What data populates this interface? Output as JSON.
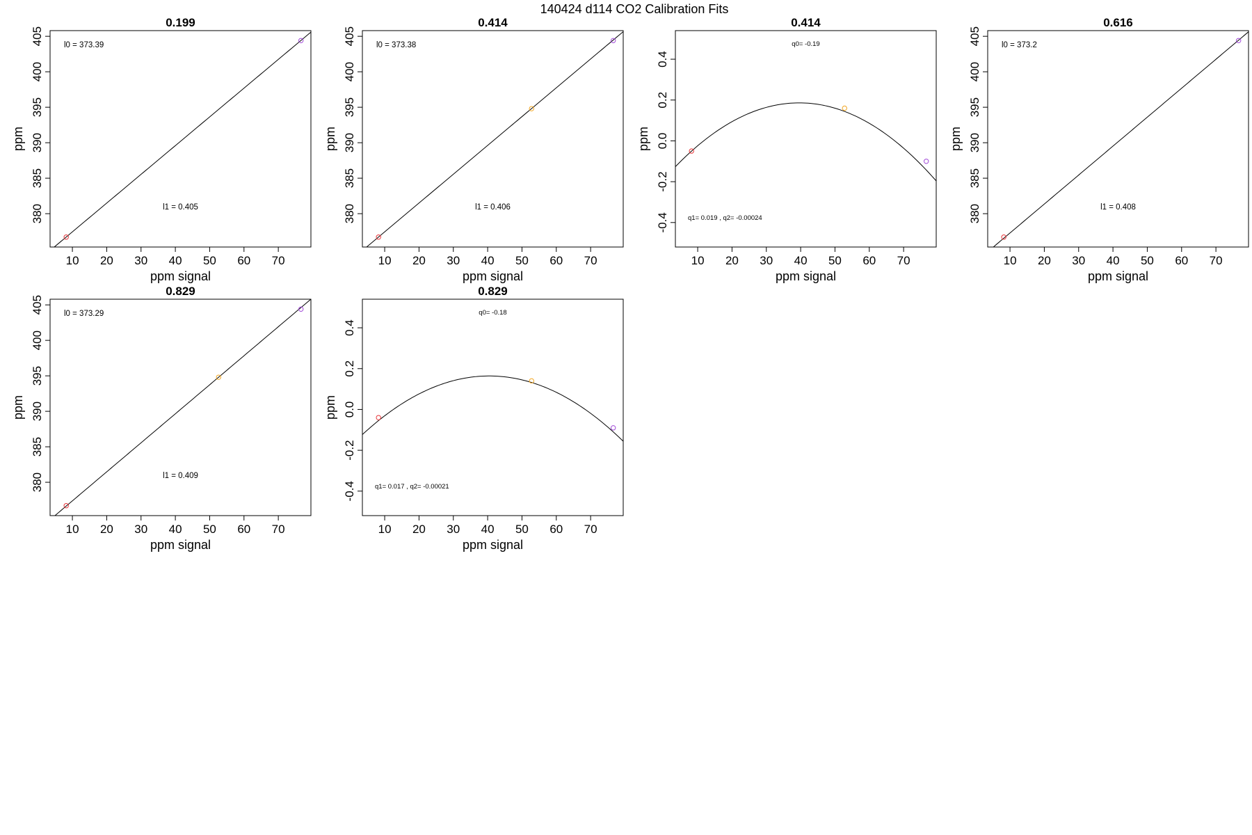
{
  "figure": {
    "title": "140424   d114   CO2 Calibration Fits",
    "colors": {
      "frame": "#000000",
      "curve": "#000000",
      "point_low": "#e8363a",
      "point_mid": "#f2a623",
      "point_high": "#a14ad8"
    }
  },
  "chart_data": [
    {
      "type": "line",
      "title": "0.199",
      "xlabel": "ppm signal",
      "ylabel": "ppm",
      "xlim": [
        3.5,
        79.5
      ],
      "ylim": [
        375.3,
        405.8
      ],
      "xticks": [
        10,
        20,
        30,
        40,
        50,
        60,
        70
      ],
      "yticks": [
        380,
        385,
        390,
        395,
        400,
        405
      ],
      "fit": {
        "kind": "linear",
        "intercept": 373.39,
        "slope": 0.405
      },
      "points": [
        {
          "x": 8.2,
          "y": 376.7,
          "color": "#e8363a"
        },
        {
          "x": 76.6,
          "y": 404.4,
          "color": "#a14ad8"
        }
      ],
      "annotations": [
        {
          "text": "l0 =  373.39",
          "pos": "top-left"
        },
        {
          "text": "l1 =  0.405",
          "pos": "lower-middle"
        }
      ]
    },
    {
      "type": "line",
      "title": "0.414",
      "xlabel": "ppm signal",
      "ylabel": "ppm",
      "xlim": [
        3.5,
        79.5
      ],
      "ylim": [
        375.3,
        405.8
      ],
      "xticks": [
        10,
        20,
        30,
        40,
        50,
        60,
        70
      ],
      "yticks": [
        380,
        385,
        390,
        395,
        400,
        405
      ],
      "fit": {
        "kind": "linear",
        "intercept": 373.38,
        "slope": 0.406
      },
      "points": [
        {
          "x": 8.2,
          "y": 376.7,
          "color": "#e8363a"
        },
        {
          "x": 52.8,
          "y": 394.8,
          "color": "#f2a623"
        },
        {
          "x": 76.6,
          "y": 404.4,
          "color": "#a14ad8"
        }
      ],
      "annotations": [
        {
          "text": "l0 =  373.38",
          "pos": "top-left"
        },
        {
          "text": "l1 =  0.406",
          "pos": "lower-middle"
        }
      ]
    },
    {
      "type": "line",
      "title": "0.414",
      "xlabel": "ppm signal",
      "ylabel": "ppm",
      "xlim": [
        3.5,
        79.5
      ],
      "ylim": [
        -0.52,
        0.54
      ],
      "xticks": [
        10,
        20,
        30,
        40,
        50,
        60,
        70
      ],
      "yticks": [
        -0.4,
        -0.2,
        0.0,
        0.2,
        0.4
      ],
      "fit": {
        "kind": "quadratic",
        "q0": -0.19,
        "q1": 0.019,
        "q2": -0.00024
      },
      "points": [
        {
          "x": 8.2,
          "y": -0.05,
          "color": "#e8363a"
        },
        {
          "x": 52.8,
          "y": 0.16,
          "color": "#f2a623"
        },
        {
          "x": 76.6,
          "y": -0.1,
          "color": "#a14ad8"
        }
      ],
      "annotations": [
        {
          "text": "q0= -0.19",
          "pos": "top-middle"
        },
        {
          "text": "q1= 0.019 , q2= -0.00024",
          "pos": "bottom-left"
        }
      ]
    },
    {
      "type": "line",
      "title": "0.616",
      "xlabel": "ppm signal",
      "ylabel": "ppm",
      "xlim": [
        3.5,
        79.5
      ],
      "ylim": [
        375.3,
        405.8
      ],
      "xticks": [
        10,
        20,
        30,
        40,
        50,
        60,
        70
      ],
      "yticks": [
        380,
        385,
        390,
        395,
        400,
        405
      ],
      "fit": {
        "kind": "linear",
        "intercept": 373.2,
        "slope": 0.408
      },
      "points": [
        {
          "x": 8.2,
          "y": 376.7,
          "color": "#e8363a"
        },
        {
          "x": 76.6,
          "y": 404.4,
          "color": "#a14ad8"
        }
      ],
      "annotations": [
        {
          "text": "l0 =  373.2",
          "pos": "top-left"
        },
        {
          "text": "l1 =  0.408",
          "pos": "lower-middle"
        }
      ]
    },
    {
      "type": "line",
      "title": "0.829",
      "xlabel": "ppm signal",
      "ylabel": "ppm",
      "xlim": [
        3.5,
        79.5
      ],
      "ylim": [
        375.3,
        405.8
      ],
      "xticks": [
        10,
        20,
        30,
        40,
        50,
        60,
        70
      ],
      "yticks": [
        380,
        385,
        390,
        395,
        400,
        405
      ],
      "fit": {
        "kind": "linear",
        "intercept": 373.29,
        "slope": 0.409
      },
      "points": [
        {
          "x": 8.2,
          "y": 376.7,
          "color": "#e8363a"
        },
        {
          "x": 52.6,
          "y": 394.8,
          "color": "#f2a623"
        },
        {
          "x": 76.6,
          "y": 404.4,
          "color": "#a14ad8"
        }
      ],
      "annotations": [
        {
          "text": "l0 =  373.29",
          "pos": "top-left"
        },
        {
          "text": "l1 =  0.409",
          "pos": "lower-middle"
        }
      ]
    },
    {
      "type": "line",
      "title": "0.829",
      "xlabel": "ppm signal",
      "ylabel": "ppm",
      "xlim": [
        3.5,
        79.5
      ],
      "ylim": [
        -0.52,
        0.54
      ],
      "xticks": [
        10,
        20,
        30,
        40,
        50,
        60,
        70
      ],
      "yticks": [
        -0.4,
        -0.2,
        0.0,
        0.2,
        0.4
      ],
      "fit": {
        "kind": "quadratic",
        "q0": -0.18,
        "q1": 0.017,
        "q2": -0.00021
      },
      "points": [
        {
          "x": 8.2,
          "y": -0.04,
          "color": "#e8363a"
        },
        {
          "x": 52.8,
          "y": 0.14,
          "color": "#f2a623"
        },
        {
          "x": 76.6,
          "y": -0.09,
          "color": "#a14ad8"
        }
      ],
      "annotations": [
        {
          "text": "q0= -0.18",
          "pos": "top-middle"
        },
        {
          "text": "q1= 0.017 , q2= -0.00021",
          "pos": "bottom-left"
        }
      ]
    }
  ]
}
